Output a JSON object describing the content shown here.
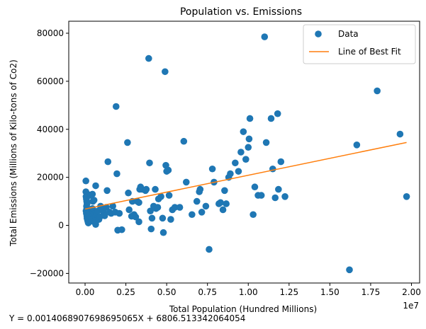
{
  "chart_data": {
    "type": "scatter",
    "title": "Population vs. Emissions",
    "xlabel": "Total Population (Hundred Millions)",
    "ylabel": "Total Emissions (Millions of Kilo-tons of Co2)",
    "x_offset_text": "1e7",
    "equation_text": "Y = 0.0014068907698695065X + 6806.513342064054",
    "xlim": [
      -1000000,
      20500000
    ],
    "ylim": [
      -24000,
      85000
    ],
    "grid": false,
    "legend_position": "top-right",
    "x_ticks": [
      0,
      2500000,
      5000000,
      7500000,
      10000000,
      12500000,
      15000000,
      17500000,
      20000000
    ],
    "x_tick_labels": [
      "0.00",
      "0.25",
      "0.50",
      "0.75",
      "1.00",
      "1.25",
      "1.50",
      "1.75",
      "2.00"
    ],
    "y_ticks": [
      -20000,
      0,
      20000,
      40000,
      60000,
      80000
    ],
    "y_tick_labels": [
      "−20000",
      "0",
      "20000",
      "40000",
      "60000",
      "80000"
    ],
    "colors": {
      "data": "#1f77b4",
      "fit": "#ff7f0e",
      "axes": "#000000"
    },
    "series": [
      {
        "name": "Data",
        "kind": "scatter",
        "points": [
          [
            50000,
            18500
          ],
          [
            50000,
            14000
          ],
          [
            60000,
            12000
          ],
          [
            80000,
            11000
          ],
          [
            100000,
            10000
          ],
          [
            120000,
            9000
          ],
          [
            90000,
            8000
          ],
          [
            100000,
            7000
          ],
          [
            60000,
            6000
          ],
          [
            80000,
            5000
          ],
          [
            110000,
            4000
          ],
          [
            120000,
            3000
          ],
          [
            140000,
            2500
          ],
          [
            160000,
            2000
          ],
          [
            180000,
            1500
          ],
          [
            200000,
            1000
          ],
          [
            220000,
            3500
          ],
          [
            250000,
            5500
          ],
          [
            280000,
            4500
          ],
          [
            300000,
            2800
          ],
          [
            320000,
            2000
          ],
          [
            350000,
            3200
          ],
          [
            380000,
            1800
          ],
          [
            400000,
            2500
          ],
          [
            150000,
            13000
          ],
          [
            250000,
            12500
          ],
          [
            350000,
            12500
          ],
          [
            450000,
            13000
          ],
          [
            550000,
            10500
          ],
          [
            480000,
            10000
          ],
          [
            450000,
            7000
          ],
          [
            500000,
            5500
          ],
          [
            550000,
            4800
          ],
          [
            600000,
            4200
          ],
          [
            650000,
            3600
          ],
          [
            700000,
            5000
          ],
          [
            750000,
            3000
          ],
          [
            700000,
            2000
          ],
          [
            650000,
            400
          ],
          [
            600000,
            1200
          ],
          [
            650000,
            16500
          ],
          [
            780000,
            6000
          ],
          [
            850000,
            2500
          ],
          [
            900000,
            3500
          ],
          [
            950000,
            8000
          ],
          [
            1000000,
            7500
          ],
          [
            1050000,
            7000
          ],
          [
            1100000,
            6000
          ],
          [
            1150000,
            4800
          ],
          [
            1200000,
            4000
          ],
          [
            1300000,
            7500
          ],
          [
            1350000,
            14500
          ],
          [
            1400000,
            26500
          ],
          [
            1500000,
            5500
          ],
          [
            1600000,
            5000
          ],
          [
            1700000,
            8000
          ],
          [
            1850000,
            5500
          ],
          [
            1900000,
            49500
          ],
          [
            1950000,
            21500
          ],
          [
            2000000,
            -2000
          ],
          [
            2100000,
            5000
          ],
          [
            2250000,
            -1800
          ],
          [
            2600000,
            34500
          ],
          [
            2650000,
            13500
          ],
          [
            2700000,
            6500
          ],
          [
            2850000,
            3800
          ],
          [
            2900000,
            10000
          ],
          [
            3000000,
            4500
          ],
          [
            3100000,
            3500
          ],
          [
            3200000,
            10000
          ],
          [
            3300000,
            1500
          ],
          [
            3300000,
            9500
          ],
          [
            3350000,
            15000
          ],
          [
            3400000,
            16000
          ],
          [
            3500000,
            15000
          ],
          [
            3700000,
            14500
          ],
          [
            3750000,
            15000
          ],
          [
            3900000,
            69500
          ],
          [
            3950000,
            26000
          ],
          [
            4000000,
            6000
          ],
          [
            4050000,
            -1500
          ],
          [
            4100000,
            3000
          ],
          [
            4200000,
            8000
          ],
          [
            4300000,
            15000
          ],
          [
            4350000,
            7000
          ],
          [
            4450000,
            7500
          ],
          [
            4500000,
            11000
          ],
          [
            4650000,
            12000
          ],
          [
            4750000,
            3000
          ],
          [
            4800000,
            -3000
          ],
          [
            4900000,
            64000
          ],
          [
            4950000,
            25000
          ],
          [
            5000000,
            22500
          ],
          [
            5100000,
            23000
          ],
          [
            5150000,
            12500
          ],
          [
            5250000,
            2500
          ],
          [
            5350000,
            6500
          ],
          [
            5500000,
            7500
          ],
          [
            5800000,
            7500
          ],
          [
            6050000,
            35000
          ],
          [
            6200000,
            18000
          ],
          [
            6550000,
            4500
          ],
          [
            6850000,
            10000
          ],
          [
            7000000,
            14000
          ],
          [
            7050000,
            15000
          ],
          [
            7150000,
            5500
          ],
          [
            7400000,
            8000
          ],
          [
            7600000,
            -10000
          ],
          [
            7800000,
            23500
          ],
          [
            7900000,
            18000
          ],
          [
            8200000,
            9000
          ],
          [
            8300000,
            9500
          ],
          [
            8450000,
            6500
          ],
          [
            8550000,
            14500
          ],
          [
            8650000,
            9000
          ],
          [
            8800000,
            20000
          ],
          [
            8900000,
            21500
          ],
          [
            9200000,
            26000
          ],
          [
            9400000,
            22500
          ],
          [
            9550000,
            30500
          ],
          [
            9700000,
            39000
          ],
          [
            9850000,
            27500
          ],
          [
            10000000,
            32500
          ],
          [
            10050000,
            36000
          ],
          [
            10100000,
            44500
          ],
          [
            10300000,
            4500
          ],
          [
            10400000,
            16000
          ],
          [
            10600000,
            12500
          ],
          [
            10800000,
            12500
          ],
          [
            11000000,
            78500
          ],
          [
            11100000,
            34500
          ],
          [
            11400000,
            44500
          ],
          [
            11500000,
            23500
          ],
          [
            11650000,
            11500
          ],
          [
            11800000,
            46500
          ],
          [
            11850000,
            15000
          ],
          [
            12000000,
            26500
          ],
          [
            12250000,
            12000
          ],
          [
            16200000,
            -18500
          ],
          [
            16650000,
            33500
          ],
          [
            17900000,
            56000
          ],
          [
            19300000,
            38000
          ],
          [
            19700000,
            12000
          ]
        ]
      },
      {
        "name": "Line of Best Fit",
        "kind": "line",
        "slope": 0.0014068907698695065,
        "intercept": 6806.513342064054,
        "x_range": [
          0,
          19700000
        ]
      }
    ]
  }
}
